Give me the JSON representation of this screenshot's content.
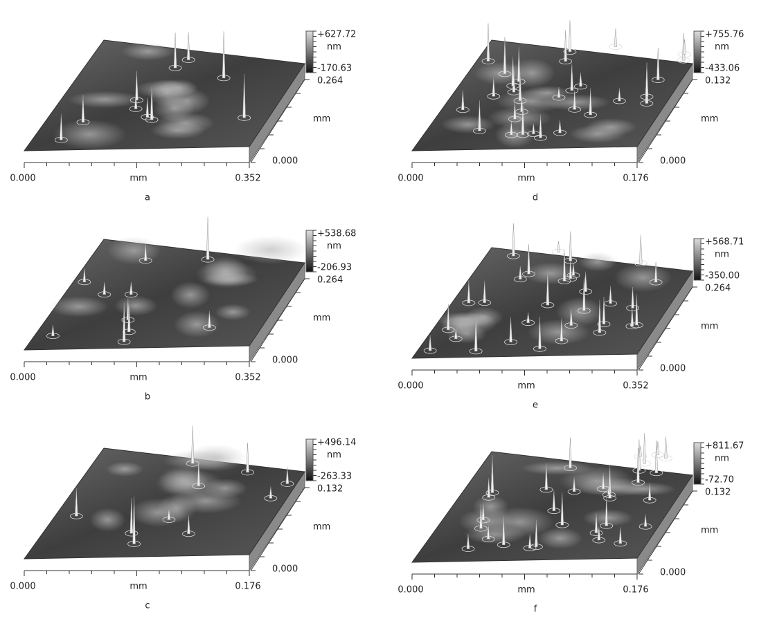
{
  "panels": [
    {
      "label": "a",
      "z_max": "+627.72",
      "z_unit": "nm",
      "z_min": "-170.63",
      "y_max": "0.264",
      "y_unit": "mm",
      "y_min": "0.000",
      "x_min": "0.000",
      "x_unit": "mm",
      "x_max": "0.352"
    },
    {
      "label": "b",
      "z_max": "+538.68",
      "z_unit": "nm",
      "z_min": "-206.93",
      "y_max": "0.264",
      "y_unit": "mm",
      "y_min": "0.000",
      "x_min": "0.000",
      "x_unit": "mm",
      "x_max": "0.352"
    },
    {
      "label": "c",
      "z_max": "+496.14",
      "z_unit": "nm",
      "z_min": "-263.33",
      "y_max": "0.132",
      "y_unit": "mm",
      "y_min": "0.000",
      "x_min": "0.000",
      "x_unit": "mm",
      "x_max": "0.176"
    },
    {
      "label": "d",
      "z_max": "+755.76",
      "z_unit": "nm",
      "z_min": "-433.06",
      "y_max": "0.132",
      "y_unit": "mm",
      "y_min": "0.000",
      "x_min": "0.000",
      "x_unit": "mm",
      "x_max": "0.176"
    },
    {
      "label": "e",
      "z_max": "+568.71",
      "z_unit": "nm",
      "z_min": "-350.00",
      "y_max": "0.264",
      "y_unit": "mm",
      "y_min": "0.000",
      "x_min": "0.000",
      "x_unit": "mm",
      "x_max": "0.352"
    },
    {
      "label": "f",
      "z_max": "+811.67",
      "z_unit": "nm",
      "z_min": "-72.70",
      "y_max": "0.132",
      "y_unit": "mm",
      "y_min": "0.000",
      "x_min": "0.000",
      "x_unit": "mm",
      "x_max": "0.176"
    }
  ]
}
